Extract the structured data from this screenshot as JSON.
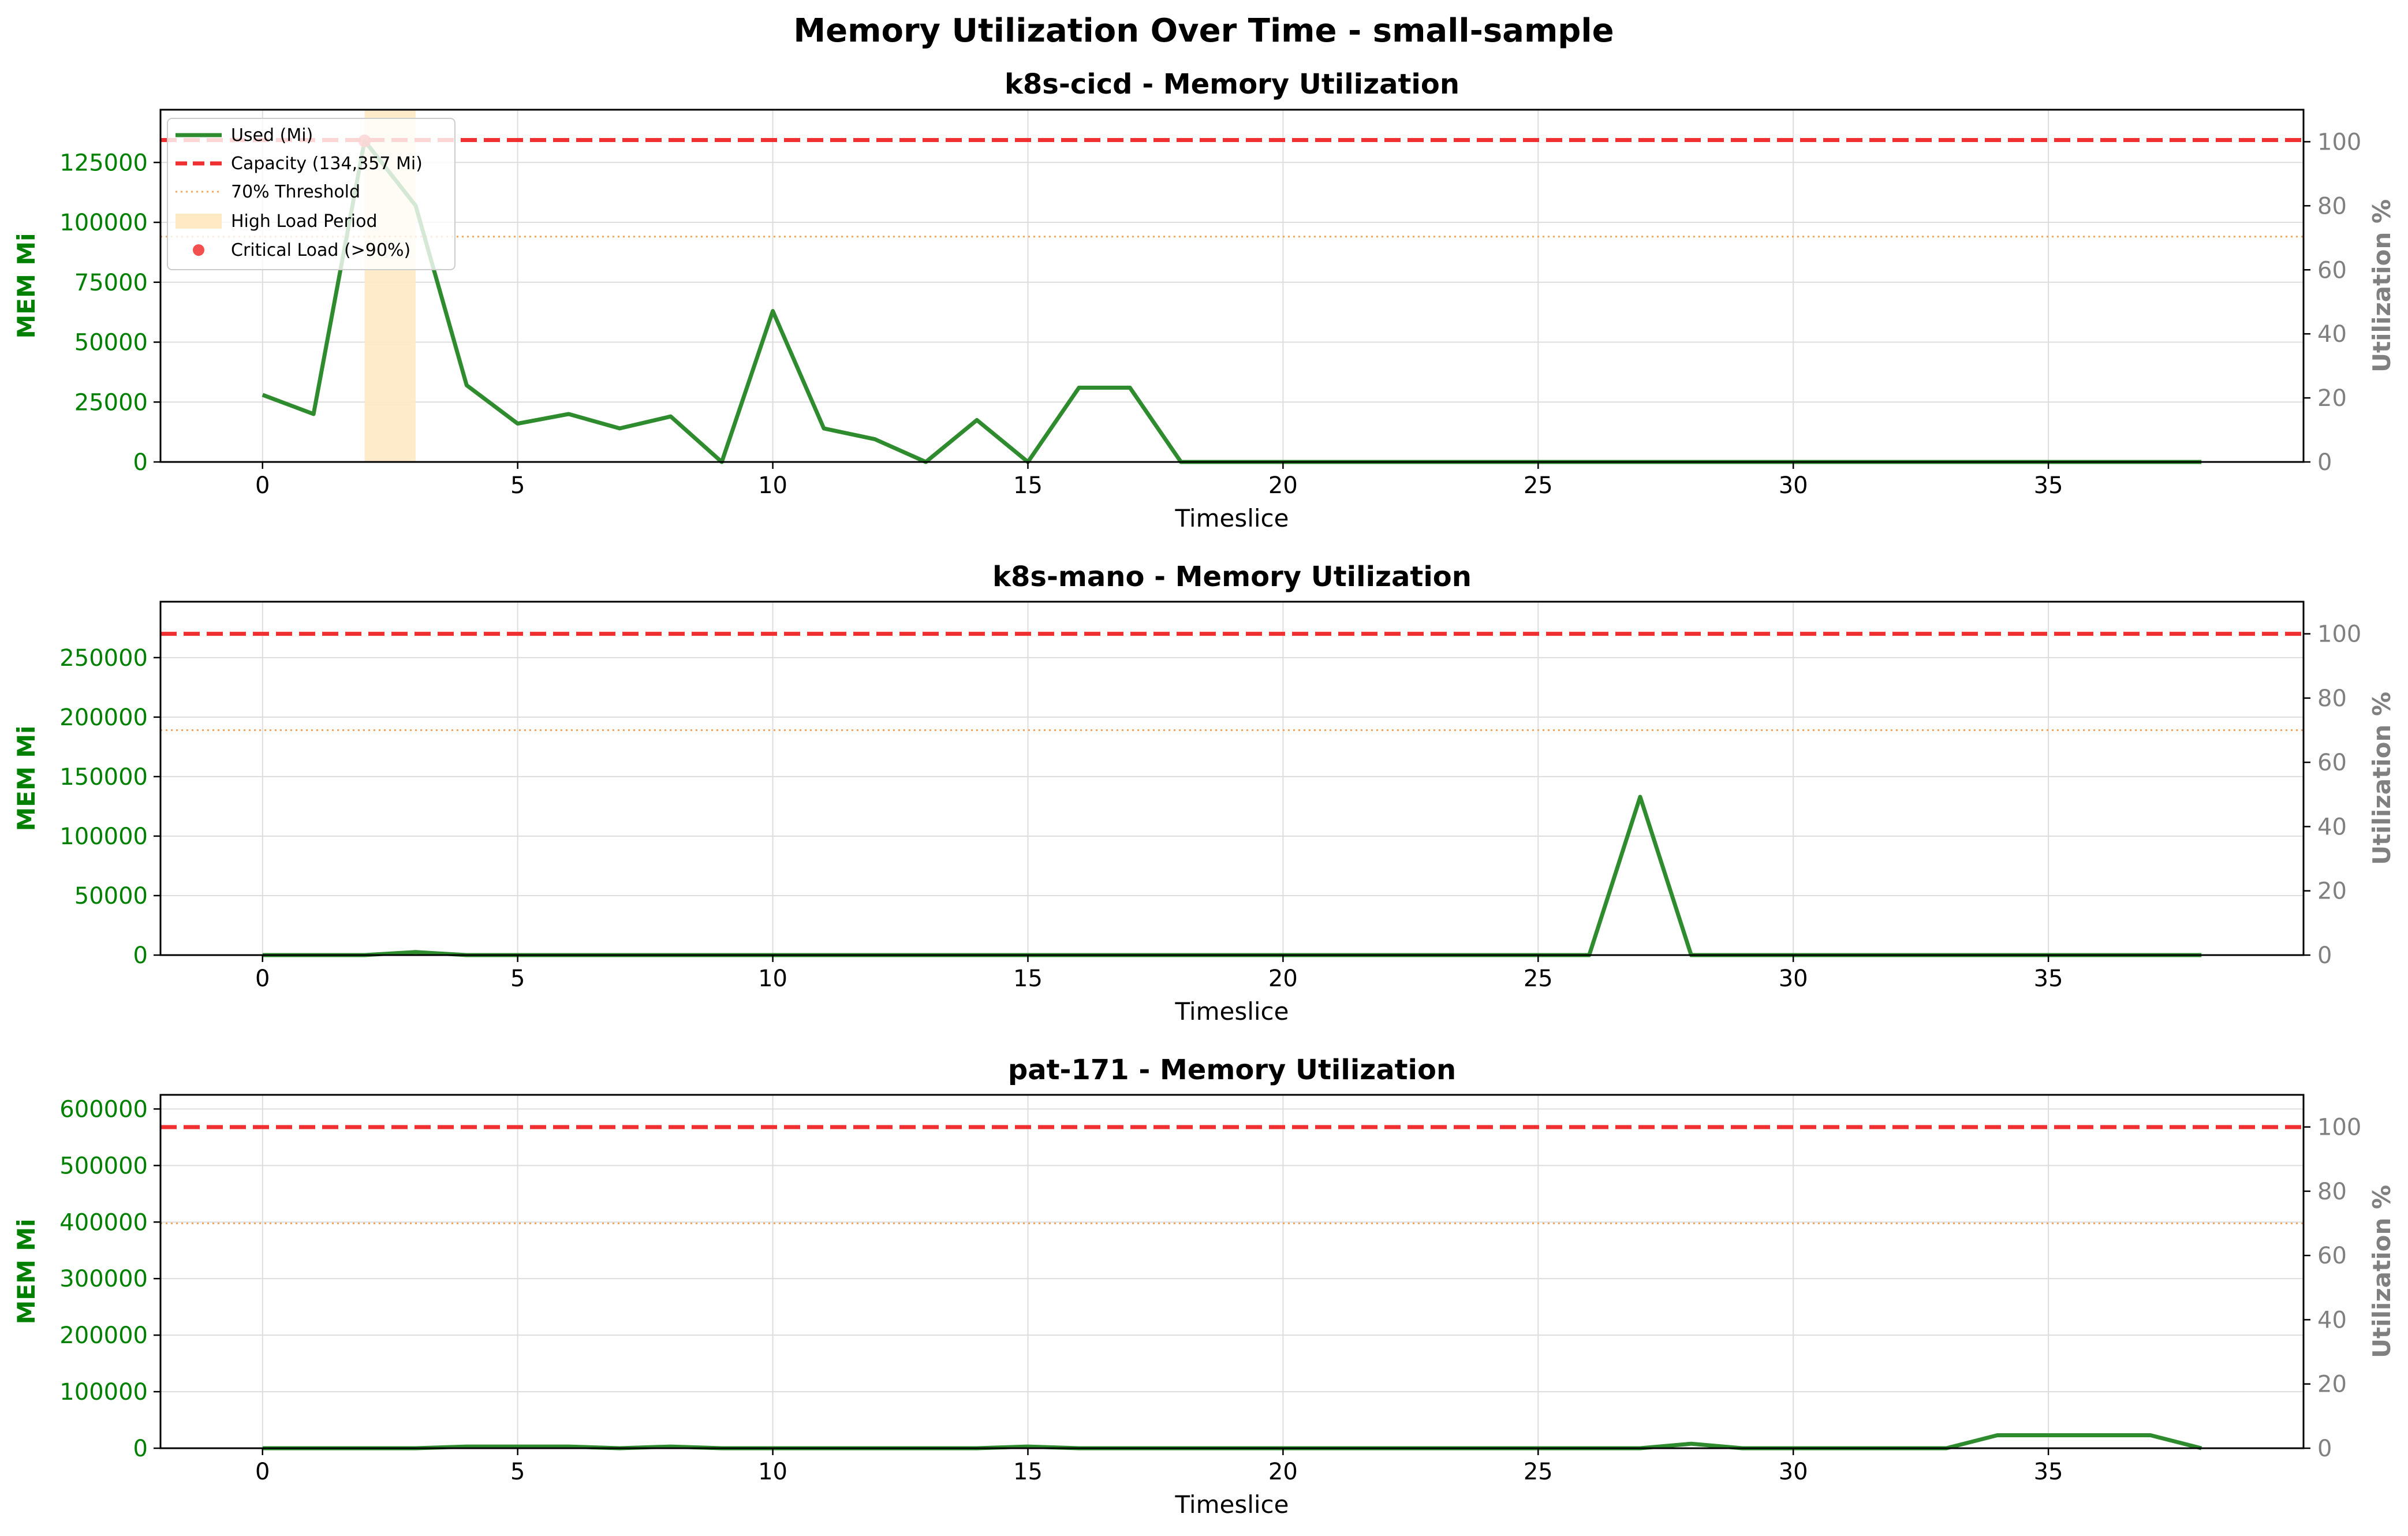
{
  "figure": {
    "title": "Memory Utilization Over Time - small-sample"
  },
  "colors": {
    "used": "#2e8b2e",
    "capacity": "#f03030",
    "threshold": "#f5a55a",
    "high_load": "#fde9c4",
    "critical": "#f03030",
    "left_axis": "#008000",
    "right_axis": "#808080",
    "grid": "#dddddd"
  },
  "legend": {
    "items": [
      {
        "key": "used",
        "label": "Used (Mi)"
      },
      {
        "key": "capacity",
        "label": "Capacity (134,357 Mi)"
      },
      {
        "key": "threshold",
        "label": "70% Threshold"
      },
      {
        "key": "high_load",
        "label": "High Load Period"
      },
      {
        "key": "critical",
        "label": "Critical Load (>90%)"
      }
    ]
  },
  "chart_data": [
    {
      "type": "line",
      "title": "k8s-cicd - Memory Utilization",
      "xlabel": "Timeslice",
      "ylabel": "MEM Mi",
      "y2label": "Utilization %",
      "xlim": [
        -2,
        40
      ],
      "ylim": [
        0,
        147000
      ],
      "y2lim": [
        0,
        110
      ],
      "xticks": [
        0,
        5,
        10,
        15,
        20,
        25,
        30,
        35
      ],
      "yticks": [
        0,
        25000,
        50000,
        75000,
        100000,
        125000
      ],
      "y2ticks": [
        0,
        20,
        40,
        60,
        80,
        100
      ],
      "grid": true,
      "legend_position": "upper left",
      "capacity": 134357,
      "threshold_pct": 70,
      "high_load_periods": [
        [
          2,
          3
        ]
      ],
      "critical_points": [
        {
          "x": 2,
          "y": 134000
        }
      ],
      "series": [
        {
          "name": "Used (Mi)",
          "x": [
            0,
            1,
            2,
            3,
            4,
            5,
            6,
            7,
            8,
            9,
            10,
            11,
            12,
            13,
            14,
            15,
            16,
            17,
            18,
            19,
            20,
            21,
            22,
            23,
            24,
            25,
            26,
            27,
            28,
            29,
            30,
            31,
            32,
            33,
            34,
            35,
            36,
            37,
            38
          ],
          "values": [
            28000,
            20000,
            134000,
            107000,
            32000,
            16000,
            20000,
            14000,
            19000,
            0,
            63000,
            14000,
            9500,
            0,
            17500,
            0,
            31000,
            31000,
            0,
            0,
            0,
            0,
            0,
            0,
            0,
            0,
            0,
            0,
            0,
            0,
            0,
            0,
            0,
            0,
            0,
            0,
            0,
            0,
            0
          ]
        }
      ]
    },
    {
      "type": "line",
      "title": "k8s-mano - Memory Utilization",
      "xlabel": "Timeslice",
      "ylabel": "MEM Mi",
      "y2label": "Utilization %",
      "xlim": [
        -2,
        40
      ],
      "ylim": [
        0,
        297000
      ],
      "y2lim": [
        0,
        110
      ],
      "xticks": [
        0,
        5,
        10,
        15,
        20,
        25,
        30,
        35
      ],
      "yticks": [
        0,
        50000,
        100000,
        150000,
        200000,
        250000
      ],
      "y2ticks": [
        0,
        20,
        40,
        60,
        80,
        100
      ],
      "grid": true,
      "capacity": 270000,
      "threshold_pct": 70,
      "series": [
        {
          "name": "Used (Mi)",
          "x": [
            0,
            1,
            2,
            3,
            4,
            5,
            6,
            7,
            8,
            9,
            10,
            11,
            12,
            13,
            14,
            15,
            16,
            17,
            18,
            19,
            20,
            21,
            22,
            23,
            24,
            25,
            26,
            27,
            28,
            29,
            30,
            31,
            32,
            33,
            34,
            35,
            36,
            37,
            38
          ],
          "values": [
            0,
            0,
            0,
            2500,
            0,
            0,
            0,
            0,
            0,
            0,
            0,
            0,
            0,
            0,
            0,
            0,
            0,
            0,
            0,
            0,
            0,
            0,
            0,
            0,
            0,
            0,
            0,
            133000,
            0,
            0,
            0,
            0,
            0,
            0,
            0,
            0,
            0,
            0,
            0
          ]
        }
      ]
    },
    {
      "type": "line",
      "title": "pat-171 - Memory Utilization",
      "xlabel": "Timeslice",
      "ylabel": "MEM Mi",
      "y2label": "Utilization %",
      "xlim": [
        -2,
        40
      ],
      "ylim": [
        0,
        625000
      ],
      "y2lim": [
        0,
        110
      ],
      "xticks": [
        0,
        5,
        10,
        15,
        20,
        25,
        30,
        35
      ],
      "yticks": [
        0,
        100000,
        200000,
        300000,
        400000,
        500000,
        600000
      ],
      "y2ticks": [
        0,
        20,
        40,
        60,
        80,
        100
      ],
      "grid": true,
      "capacity": 568000,
      "threshold_pct": 70,
      "series": [
        {
          "name": "Used (Mi)",
          "x": [
            0,
            1,
            2,
            3,
            4,
            5,
            6,
            7,
            8,
            9,
            10,
            11,
            12,
            13,
            14,
            15,
            16,
            17,
            18,
            19,
            20,
            21,
            22,
            23,
            24,
            25,
            26,
            27,
            28,
            29,
            30,
            31,
            32,
            33,
            34,
            35,
            36,
            37,
            38
          ],
          "values": [
            0,
            0,
            0,
            0,
            3000,
            3000,
            3000,
            0,
            3000,
            0,
            0,
            0,
            0,
            0,
            0,
            3000,
            0,
            0,
            0,
            0,
            0,
            0,
            0,
            0,
            0,
            0,
            0,
            0,
            8000,
            0,
            0,
            0,
            0,
            0,
            23000,
            23000,
            23000,
            23000,
            0
          ]
        }
      ]
    }
  ]
}
